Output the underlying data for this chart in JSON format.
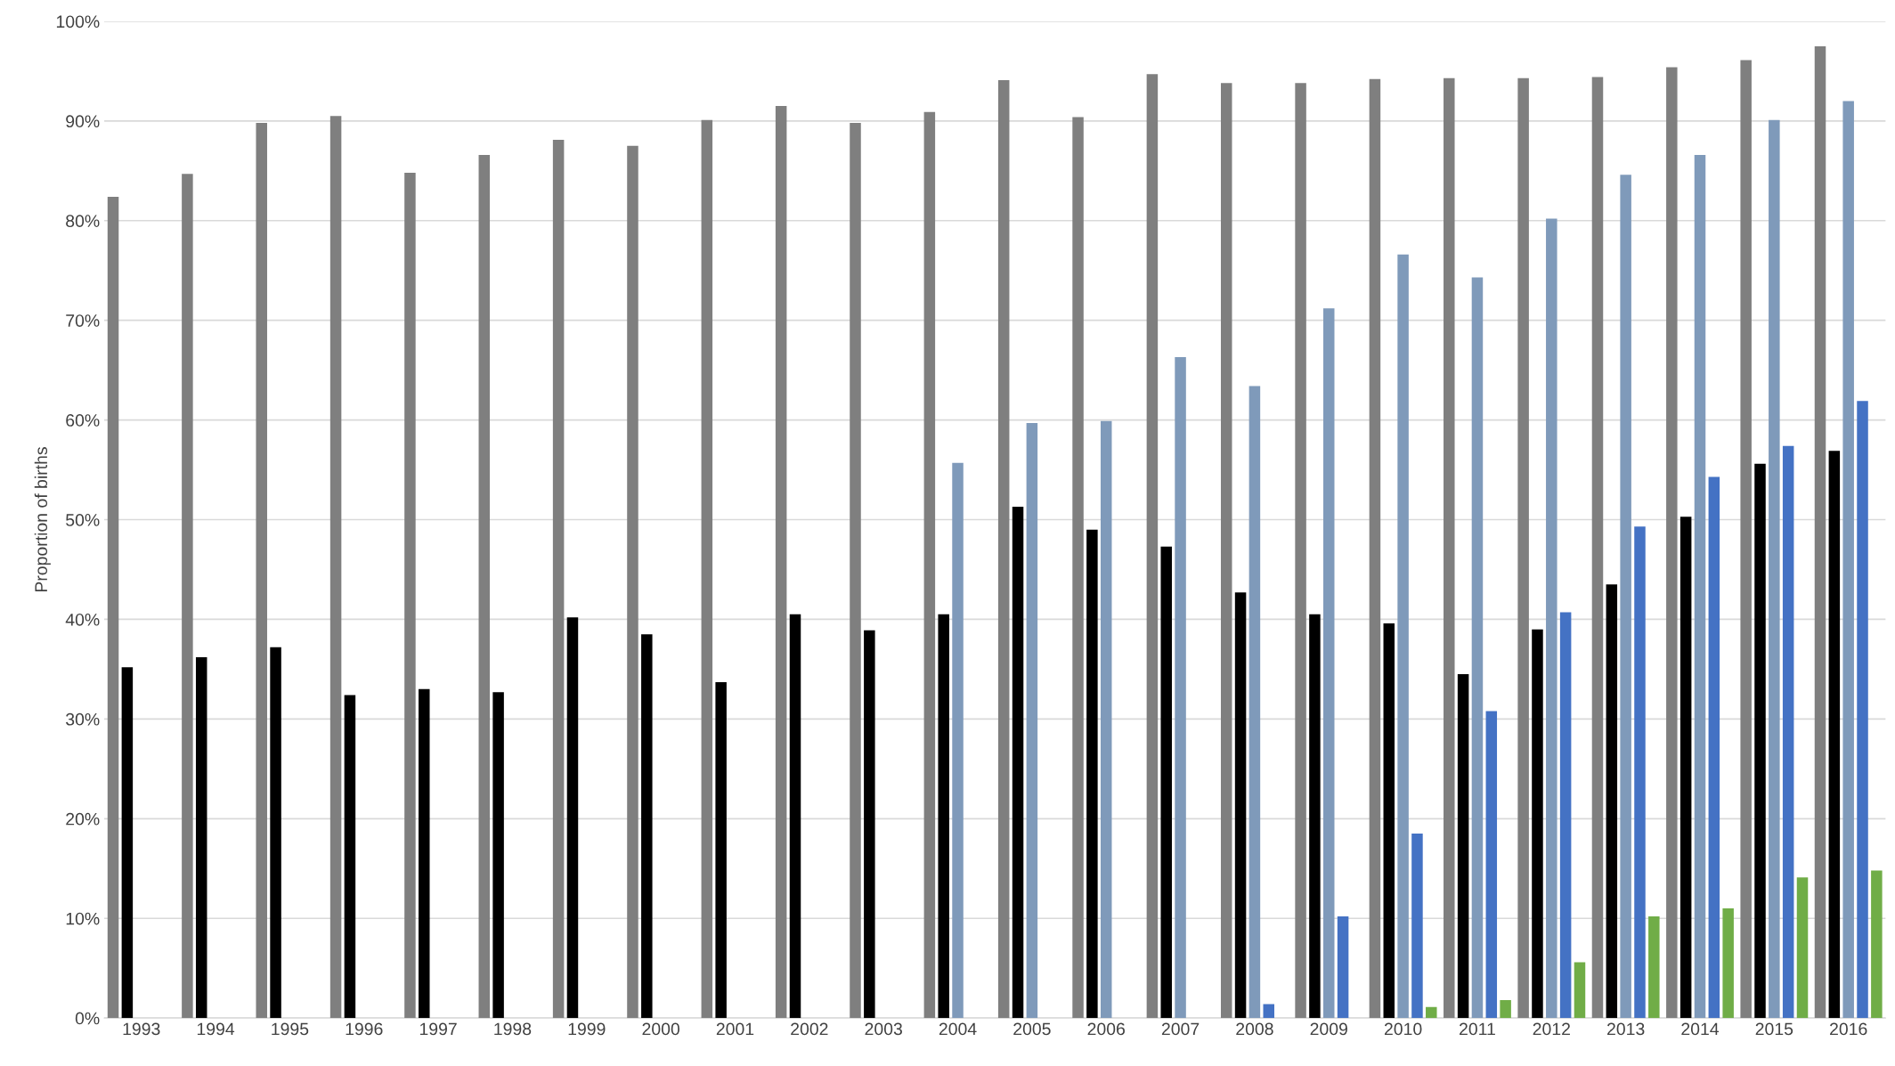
{
  "chart_data": {
    "type": "bar",
    "ylabel": "Proportion of births",
    "categories": [
      "1993",
      "1994",
      "1995",
      "1996",
      "1997",
      "1998",
      "1999",
      "2000",
      "2001",
      "2002",
      "2003",
      "2004",
      "2005",
      "2006",
      "2007",
      "2008",
      "2009",
      "2010",
      "2011",
      "2012",
      "2013",
      "2014",
      "2015",
      "2016"
    ],
    "series": [
      {
        "color": "#7f7f7f",
        "values": [
          82.4,
          84.7,
          89.8,
          90.5,
          84.8,
          86.6,
          88.1,
          87.5,
          90.1,
          91.5,
          89.8,
          90.9,
          94.1,
          90.4,
          94.7,
          93.8,
          93.8,
          94.2,
          94.3,
          94.3,
          94.4,
          95.4,
          96.1,
          97.5
        ]
      },
      {
        "color": "#000000",
        "values": [
          35.2,
          36.2,
          37.2,
          32.4,
          33.0,
          32.7,
          40.2,
          38.5,
          33.7,
          40.5,
          38.9,
          40.5,
          51.3,
          49.0,
          47.3,
          42.7,
          40.5,
          39.6,
          34.5,
          39.0,
          43.5,
          50.3,
          55.6,
          56.9
        ]
      },
      {
        "color": "#7f9aba",
        "values": [
          null,
          null,
          null,
          null,
          null,
          null,
          null,
          null,
          null,
          null,
          null,
          55.7,
          59.7,
          59.9,
          66.3,
          63.4,
          71.2,
          76.6,
          74.3,
          80.2,
          84.6,
          86.6,
          90.1,
          92.0
        ]
      },
      {
        "color": "#4472c4",
        "values": [
          null,
          null,
          null,
          null,
          null,
          null,
          null,
          null,
          null,
          null,
          null,
          null,
          null,
          null,
          null,
          1.4,
          10.2,
          18.5,
          30.8,
          40.7,
          49.3,
          54.3,
          57.4,
          61.9
        ]
      },
      {
        "color": "#70ad47",
        "values": [
          null,
          null,
          null,
          null,
          null,
          null,
          null,
          null,
          null,
          null,
          null,
          null,
          null,
          null,
          null,
          null,
          null,
          1.1,
          1.8,
          5.6,
          10.2,
          11.0,
          14.1,
          14.8
        ]
      }
    ],
    "ylim": [
      0,
      100
    ],
    "yticks": [
      {
        "value": 0,
        "label": "0%"
      },
      {
        "value": 10,
        "label": "10%"
      },
      {
        "value": 20,
        "label": "20%"
      },
      {
        "value": 30,
        "label": "30%"
      },
      {
        "value": 40,
        "label": "40%"
      },
      {
        "value": 50,
        "label": "50%"
      },
      {
        "value": 60,
        "label": "60%"
      },
      {
        "value": 70,
        "label": "70%"
      },
      {
        "value": 80,
        "label": "80%"
      },
      {
        "value": 90,
        "label": "90%"
      },
      {
        "value": 100,
        "label": "100%"
      }
    ],
    "grid": "y"
  }
}
